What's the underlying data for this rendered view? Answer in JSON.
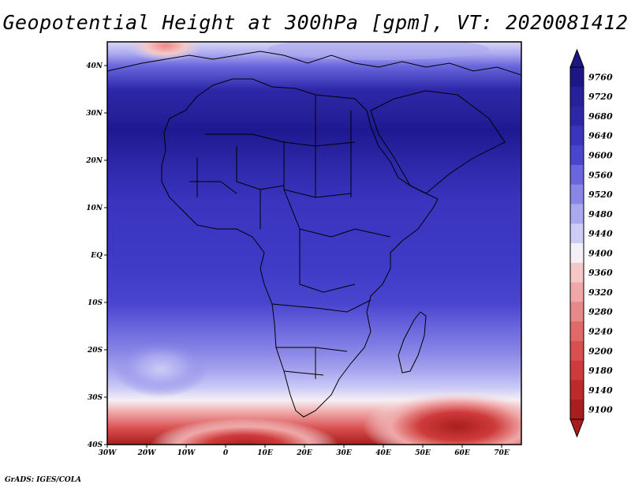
{
  "title": "Geopotential Height at 300hPa [gpm], VT: 2020081412",
  "credit": "GrADS: IGES/COLA",
  "map": {
    "lon_range": [
      -30,
      75
    ],
    "lat_range": [
      -40,
      45
    ],
    "lon_ticks": [
      {
        "value": -30,
        "label": "30W"
      },
      {
        "value": -20,
        "label": "20W"
      },
      {
        "value": -10,
        "label": "10W"
      },
      {
        "value": 0,
        "label": "0"
      },
      {
        "value": 10,
        "label": "10E"
      },
      {
        "value": 20,
        "label": "20E"
      },
      {
        "value": 30,
        "label": "30E"
      },
      {
        "value": 40,
        "label": "40E"
      },
      {
        "value": 50,
        "label": "50E"
      },
      {
        "value": 60,
        "label": "60E"
      },
      {
        "value": 70,
        "label": "70E"
      }
    ],
    "lat_ticks": [
      {
        "value": 40,
        "label": "40N"
      },
      {
        "value": 30,
        "label": "30N"
      },
      {
        "value": 20,
        "label": "20N"
      },
      {
        "value": 10,
        "label": "10N"
      },
      {
        "value": 0,
        "label": "EQ"
      },
      {
        "value": -10,
        "label": "10S"
      },
      {
        "value": -20,
        "label": "20S"
      },
      {
        "value": -30,
        "label": "30S"
      },
      {
        "value": -40,
        "label": "40S"
      }
    ]
  },
  "colorbar": {
    "levels": [
      "9760",
      "9720",
      "9680",
      "9640",
      "9600",
      "9560",
      "9520",
      "9480",
      "9440",
      "9400",
      "9360",
      "9320",
      "9280",
      "9240",
      "9200",
      "9180",
      "9140",
      "9100"
    ],
    "colors": [
      "#1c1686",
      "#26209a",
      "#2d27a8",
      "#3a34bf",
      "#4a45cf",
      "#6a66dd",
      "#8986e6",
      "#aaa8ef",
      "#ccccf7",
      "#f5f0f5",
      "#f5c8c8",
      "#f0a7a7",
      "#e88989",
      "#e06a6a",
      "#d94f4f",
      "#cf3b3b",
      "#bd2a2a",
      "#a81e1e"
    ]
  },
  "colors": {
    "lowest": "#f7e2e2",
    "ocean_base": "#4a46cc",
    "sahara_band": "#2a24a0",
    "south_high": "#b01e1e"
  }
}
